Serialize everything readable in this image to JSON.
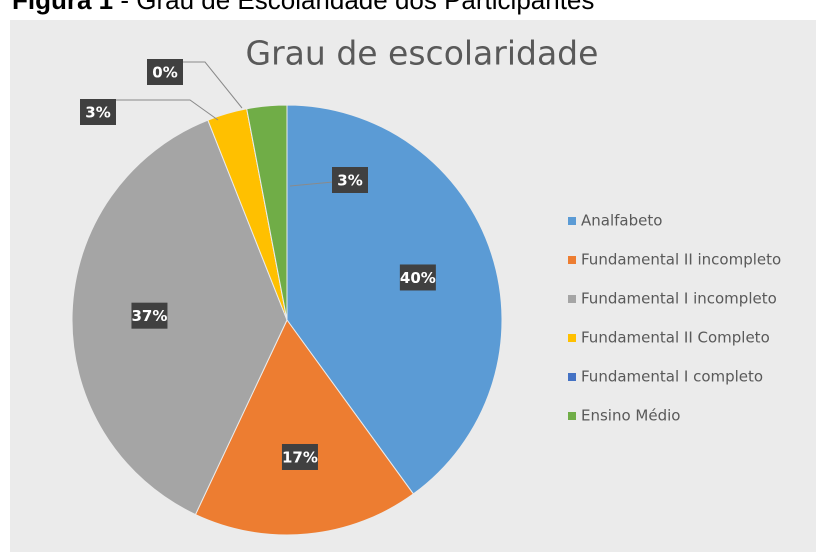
{
  "caption": {
    "label": "Figura 1",
    "text": " - Grau de Escolaridade dos Participantes"
  },
  "chart_data": {
    "type": "pie",
    "title": "Grau de escolaridade",
    "categories": [
      "Analfabeto",
      "Fundamental II incompleto",
      "Fundamental I incompleto",
      "Fundamental II Completo",
      "Fundamental I completo",
      "Ensino Médio"
    ],
    "values": [
      40,
      17,
      37,
      3,
      0,
      3
    ],
    "value_labels": [
      "40%",
      "17%",
      "37%",
      "3%",
      "0%",
      "3%"
    ],
    "colors": [
      "#5b9bd5",
      "#ed7d31",
      "#a5a5a5",
      "#ffc000",
      "#4472c4",
      "#70ad47"
    ],
    "legend": "right"
  }
}
